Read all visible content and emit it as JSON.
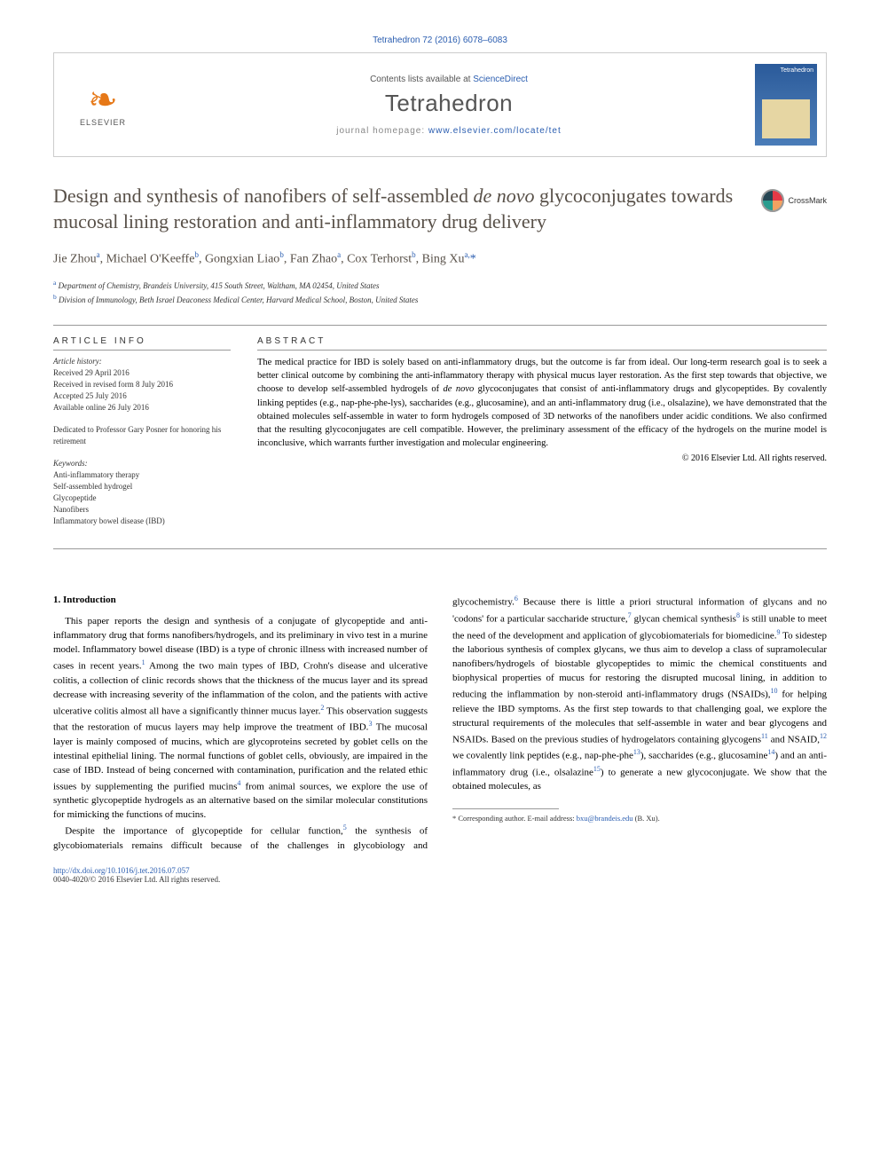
{
  "citation": "Tetrahedron 72 (2016) 6078–6083",
  "header": {
    "contents_prefix": "Contents lists available at ",
    "contents_link": "ScienceDirect",
    "journal": "Tetrahedron",
    "homepage_prefix": "journal homepage: ",
    "homepage_link": "www.elsevier.com/locate/tet",
    "publisher_logo_text": "ELSEVIER",
    "cover_label": "Tetrahedron"
  },
  "crossmark": "CrossMark",
  "title_part1": "Design and synthesis of nanofibers of self-assembled ",
  "title_ital": "de novo",
  "title_part2": " glycoconjugates towards mucosal lining restoration and anti-inflammatory drug delivery",
  "authors_html": "Jie Zhou<sup>a</sup>, Michael O'Keeffe<sup>b</sup>, Gongxian Liao<sup>b</sup>, Fan Zhao<sup>a</sup>, Cox Terhorst<sup>b</sup>, Bing Xu<sup>a,</sup><span class='ast'>*</span>",
  "affiliations": {
    "a": "Department of Chemistry, Brandeis University, 415 South Street, Waltham, MA 02454, United States",
    "b": "Division of Immunology, Beth Israel Deaconess Medical Center, Harvard Medical School, Boston, United States"
  },
  "info_heading": "ARTICLE INFO",
  "abstract_heading": "ABSTRACT",
  "history_label": "Article history:",
  "history": [
    "Received 29 April 2016",
    "Received in revised form 8 July 2016",
    "Accepted 25 July 2016",
    "Available online 26 July 2016"
  ],
  "dedication": "Dedicated to Professor Gary Posner for honoring his retirement",
  "keywords_label": "Keywords:",
  "keywords": [
    "Anti-inflammatory therapy",
    "Self-assembled hydrogel",
    "Glycopeptide",
    "Nanofibers",
    "Inflammatory bowel disease (IBD)"
  ],
  "abstract": "The medical practice for IBD is solely based on anti-inflammatory drugs, but the outcome is far from ideal. Our long-term research goal is to seek a better clinical outcome by combining the anti-inflammatory therapy with physical mucus layer restoration. As the first step towards that objective, we choose to develop self-assembled hydrogels of de novo glycoconjugates that consist of anti-inflammatory drugs and glycopeptides. By covalently linking peptides (e.g., nap-phe-phe-lys), saccharides (e.g., glucosamine), and an anti-inflammatory drug (i.e., olsalazine), we have demonstrated that the obtained molecules self-assemble in water to form hydrogels composed of 3D networks of the nanofibers under acidic conditions. We also confirmed that the resulting glycoconjugates are cell compatible. However, the preliminary assessment of the efficacy of the hydrogels on the murine model is inconclusive, which warrants further investigation and molecular engineering.",
  "copyright": "© 2016 Elsevier Ltd. All rights reserved.",
  "section1_title": "1. Introduction",
  "body_col1_p1": "This paper reports the design and synthesis of a conjugate of glycopeptide and anti-inflammatory drug that forms nanofibers/hydrogels, and its preliminary in vivo test in a murine model. Inflammatory bowel disease (IBD) is a type of chronic illness with increased number of cases in recent years.",
  "body_col1_p1b": " Among the two main types of IBD, Crohn's disease and ulcerative colitis, a collection of clinic records shows that the thickness of the mucus layer and its spread decrease with increasing severity of the inflammation of the colon, and the patients with active ulcerative colitis almost all have a significantly thinner mucus layer.",
  "body_col1_p1c": " This observation suggests that the restoration of mucus layers may help improve the treatment of IBD.",
  "body_col1_p1d": " The mucosal layer is mainly composed of mucins, which are glycoproteins secreted by goblet cells on the intestinal epithelial lining. The normal functions of goblet cells, obviously, are impaired in the case of IBD. Instead of being concerned with contamination, purification and the related ethic issues by supplementing the purified mucins",
  "body_col1_p1e": " from animal sources, we explore the use of",
  "body_col2_p1": "synthetic glycopeptide hydrogels as an alternative based on the similar molecular constitutions for mimicking the functions of mucins.",
  "body_col2_p2a": "Despite the importance of glycopeptide for cellular function,",
  "body_col2_p2b": " the synthesis of glycobiomaterials remains difficult because of the challenges in glycobiology and glycochemistry.",
  "body_col2_p2c": " Because there is little a priori structural information of glycans and no 'codons' for a particular saccharide structure,",
  "body_col2_p2d": " glycan chemical synthesis",
  "body_col2_p2e": " is still unable to meet the need of the development and application of glycobiomaterials for biomedicine.",
  "body_col2_p2f": " To sidestep the laborious synthesis of complex glycans, we thus aim to develop a class of supramolecular nanofibers/hydrogels of biostable glycopeptides to mimic the chemical constituents and biophysical properties of mucus for restoring the disrupted mucosal lining, in addition to reducing the inflammation by non-steroid anti-inflammatory drugs (NSAIDs),",
  "body_col2_p2g": " for helping relieve the IBD symptoms. As the first step towards to that challenging goal, we explore the structural requirements of the molecules that self-assemble in water and bear glycogens and NSAIDs. Based on the previous studies of hydrogelators containing glycogens",
  "body_col2_p2h": " and NSAID,",
  "body_col2_p2i": " we covalently link peptides (e.g., nap-phe-phe",
  "body_col2_p2j": "), saccharides (e.g., glucosamine",
  "body_col2_p2k": ") and an anti-inflammatory drug (i.e., olsalazine",
  "body_col2_p2l": ") to generate a new glycoconjugate. We show that the obtained molecules, as",
  "refs": {
    "r1": "1",
    "r2": "2",
    "r3": "3",
    "r4": "4",
    "r5": "5",
    "r6": "6",
    "r7": "7",
    "r8": "8",
    "r9": "9",
    "r10": "10",
    "r11": "11",
    "r12": "12",
    "r13": "13",
    "r14": "14",
    "r15": "15"
  },
  "footnote_label": "* Corresponding author. E-mail address: ",
  "footnote_email": "bxu@brandeis.edu",
  "footnote_name": " (B. Xu).",
  "doi_line": "http://dx.doi.org/10.1016/j.tet.2016.07.057",
  "issn_line": "0040-4020/© 2016 Elsevier Ltd. All rights reserved."
}
